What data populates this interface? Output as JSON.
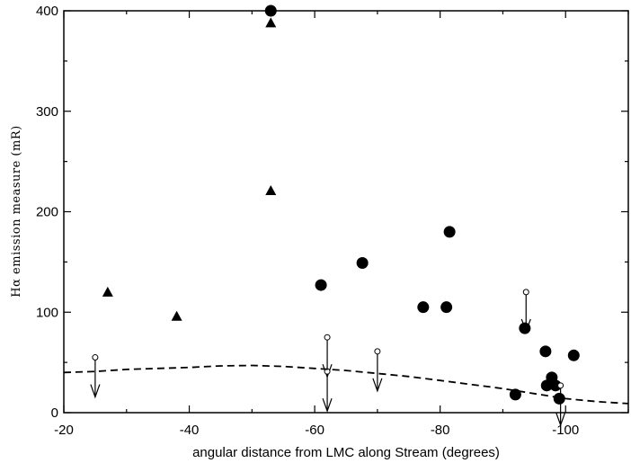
{
  "chart_data": {
    "type": "scatter",
    "xlabel": "angular distance from LMC along Stream (degrees)",
    "ylabel": "Hα emission measure (mR)",
    "xlim": [
      -20,
      -110
    ],
    "ylim": [
      0,
      400
    ],
    "x_reversed": true,
    "x_ticks": [
      -20,
      -40,
      -60,
      -80,
      -100
    ],
    "y_ticks": [
      0,
      100,
      200,
      300,
      400
    ],
    "grid": false,
    "series": [
      {
        "marker": "circle-filled",
        "points": [
          [
            -53,
            400
          ],
          [
            -61,
            127
          ],
          [
            -67.6,
            149
          ],
          [
            -77.3,
            105
          ],
          [
            -81,
            105
          ],
          [
            -81.5,
            180
          ],
          [
            -92,
            18
          ],
          [
            -93.5,
            84
          ],
          [
            -96.8,
            61
          ],
          [
            -97,
            27
          ],
          [
            -97.8,
            35
          ],
          [
            -98.4,
            27
          ],
          [
            -99,
            14
          ],
          [
            -101.3,
            57
          ]
        ]
      },
      {
        "marker": "triangle-filled",
        "points": [
          [
            -27,
            120
          ],
          [
            -38,
            96
          ],
          [
            -53,
            388
          ],
          [
            -53,
            221
          ]
        ]
      },
      {
        "marker": "upper-limit",
        "points": [
          [
            -25,
            55
          ],
          [
            -62,
            75
          ],
          [
            -62,
            41
          ],
          [
            -70,
            61
          ],
          [
            -93.7,
            120
          ],
          [
            -99.2,
            27
          ]
        ]
      },
      {
        "marker": "dashed-curve",
        "points": [
          [
            -20,
            40
          ],
          [
            -25,
            41
          ],
          [
            -30,
            43
          ],
          [
            -35,
            44
          ],
          [
            -40,
            45
          ],
          [
            -45,
            46.5
          ],
          [
            -50,
            47
          ],
          [
            -55,
            46
          ],
          [
            -60,
            44
          ],
          [
            -65,
            42
          ],
          [
            -70,
            39
          ],
          [
            -75,
            36
          ],
          [
            -80,
            32
          ],
          [
            -85,
            28
          ],
          [
            -90,
            24
          ],
          [
            -95,
            19
          ],
          [
            -100,
            14
          ],
          [
            -105,
            11
          ],
          [
            -110,
            9
          ]
        ]
      }
    ]
  }
}
